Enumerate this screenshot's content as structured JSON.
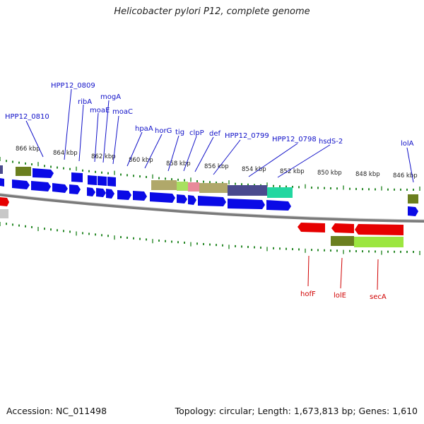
{
  "title": "Helicobacter pylori P12, complete genome",
  "footer": {
    "accession": "Accession: NC_011498",
    "topology": "Topology: circular; Length: 1,673,813 bp; Genes: 1,610"
  },
  "colors": {
    "forward_label": "#1010c8",
    "reverse_label": "#d00000",
    "forward_gene": "#0a0ae6",
    "reverse_gene": "#e60000",
    "tick": "#2a8a2a",
    "backbone": "#7a7a7a"
  },
  "kbp_labels": [
    "866 kbp",
    "864 kbp",
    "862 kbp",
    "860 kbp",
    "858 kbp",
    "856 kbp",
    "854 kbp",
    "852 kbp",
    "850 kbp",
    "848 kbp",
    "846 kbp"
  ],
  "forward_genes": [
    "HPP12_0810",
    "HPP12_0809",
    "ribA",
    "moaE",
    "mogA",
    "moaC",
    "hpaA",
    "horG",
    "tig",
    "clpP",
    "def",
    "HPP12_0799",
    "HPP12_0798",
    "hsdS-2",
    "lolA"
  ],
  "reverse_genes": [
    "hofF",
    "lolE",
    "secA"
  ]
}
